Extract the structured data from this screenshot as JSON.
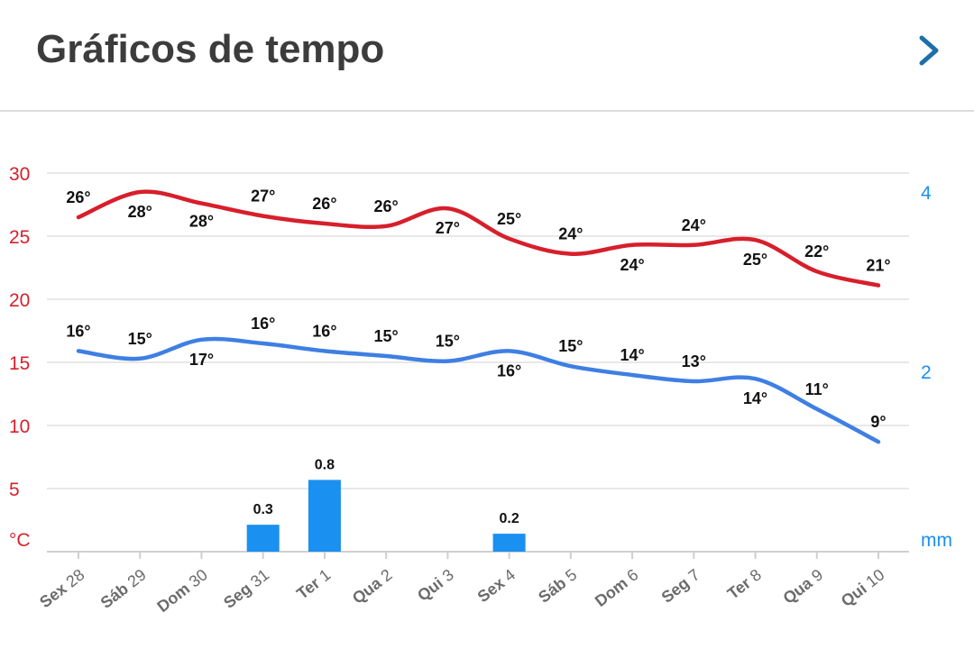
{
  "header": {
    "title": "Gráficos de tempo",
    "next_icon": "chevron-right-icon"
  },
  "colors": {
    "max_line": "#d71f2b",
    "min_line": "#3f7fe3",
    "precip_bar": "#1a90f0",
    "left_axis": "#d71f2b",
    "right_axis": "#1a90f0",
    "grid": "#e8e8e8"
  },
  "chart_data": {
    "type": "line",
    "days": [
      {
        "weekday": "Sex",
        "day": "28"
      },
      {
        "weekday": "Sáb",
        "day": "29"
      },
      {
        "weekday": "Dom",
        "day": "30"
      },
      {
        "weekday": "Seg",
        "day": "31"
      },
      {
        "weekday": "Ter",
        "day": "1"
      },
      {
        "weekday": "Qua",
        "day": "2"
      },
      {
        "weekday": "Qui",
        "day": "3"
      },
      {
        "weekday": "Sex",
        "day": "4"
      },
      {
        "weekday": "Sáb",
        "day": "5"
      },
      {
        "weekday": "Dom",
        "day": "6"
      },
      {
        "weekday": "Seg",
        "day": "7"
      },
      {
        "weekday": "Ter",
        "day": "8"
      },
      {
        "weekday": "Qua",
        "day": "9"
      },
      {
        "weekday": "Qui",
        "day": "10"
      }
    ],
    "series": [
      {
        "values": [
          26.5,
          28.5,
          27.6,
          26.6,
          26.0,
          25.8,
          27.2,
          24.8,
          23.6,
          24.3,
          24.3,
          24.7,
          22.2,
          21.1
        ],
        "labels": [
          "26°",
          "28°",
          "28°",
          "27°",
          "26°",
          "26°",
          "27°",
          "25°",
          "24°",
          "24°",
          "24°",
          "25°",
          "22°",
          "21°"
        ]
      },
      {
        "values": [
          15.9,
          15.3,
          16.8,
          16.5,
          15.9,
          15.5,
          15.1,
          15.9,
          14.7,
          14.0,
          13.5,
          13.7,
          11.3,
          8.7
        ],
        "labels": [
          "16°",
          "15°",
          "17°",
          "16°",
          "16°",
          "15°",
          "15°",
          "16°",
          "15°",
          "14°",
          "13°",
          "14°",
          "11°",
          "9°"
        ]
      }
    ],
    "precipitation": {
      "values": [
        0,
        0,
        0,
        0.3,
        0.8,
        0,
        0,
        0.2,
        0,
        0,
        0,
        0,
        0,
        0
      ],
      "labels": [
        "",
        "",
        "",
        "0.3",
        "0.8",
        "",
        "",
        "0.2",
        "",
        "",
        "",
        "",
        "",
        ""
      ]
    },
    "left_axis": {
      "ticks": [
        "30",
        "25",
        "20",
        "15",
        "10",
        "5"
      ],
      "tick_values": [
        30,
        25,
        20,
        15,
        10,
        5
      ],
      "unit": "°C",
      "ylim": [
        0,
        30
      ]
    },
    "right_axis": {
      "ticks": [
        "4",
        "2"
      ],
      "tick_values": [
        4,
        2
      ],
      "unit": "mm"
    },
    "grid": true
  }
}
